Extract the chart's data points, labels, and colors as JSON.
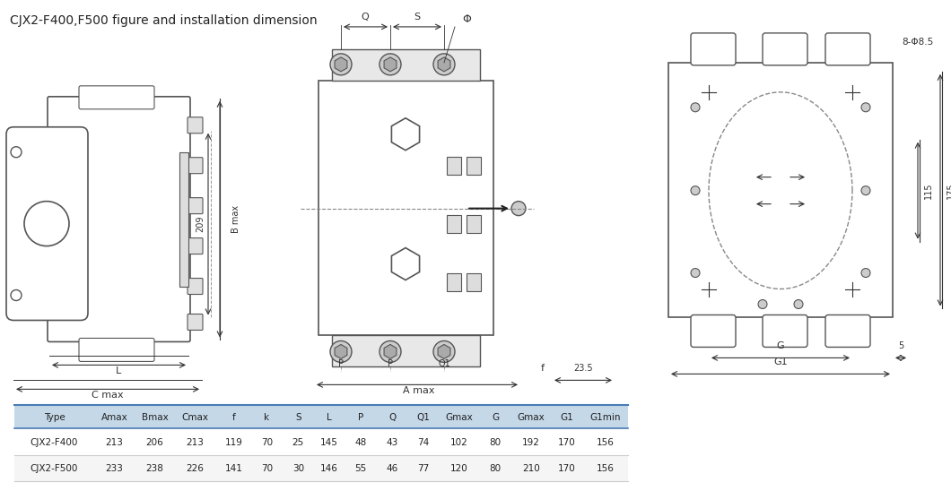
{
  "title": "CJX2-F400,F500 figure and installation dimension",
  "bg_color": "#d8d8d8",
  "table_bg_header": "#b8cce4",
  "table_bg_row1": "#ffffff",
  "table_bg_row2": "#f0f0f0",
  "table_headers": [
    "Type",
    "Amax",
    "Bmax",
    "Cmax",
    "f",
    "k",
    "S",
    "L",
    "P",
    "Q",
    "Q1",
    "Gmax",
    "G",
    "Gmax",
    "G1",
    "G1min"
  ],
  "table_rows": [
    [
      "CJX2-F400",
      "213",
      "206",
      "213",
      "119",
      "70",
      "25",
      "145",
      "48",
      "43",
      "74",
      "102",
      "80",
      "192",
      "170",
      "156"
    ],
    [
      "CJX2-F500",
      "233",
      "238",
      "226",
      "141",
      "70",
      "30",
      "146",
      "55",
      "46",
      "77",
      "120",
      "80",
      "210",
      "170",
      "156"
    ]
  ],
  "line_color": "#555555",
  "dim_color": "#333333",
  "dashed_color": "#888888",
  "white": "#ffffff",
  "light_gray": "#e8e8e8"
}
